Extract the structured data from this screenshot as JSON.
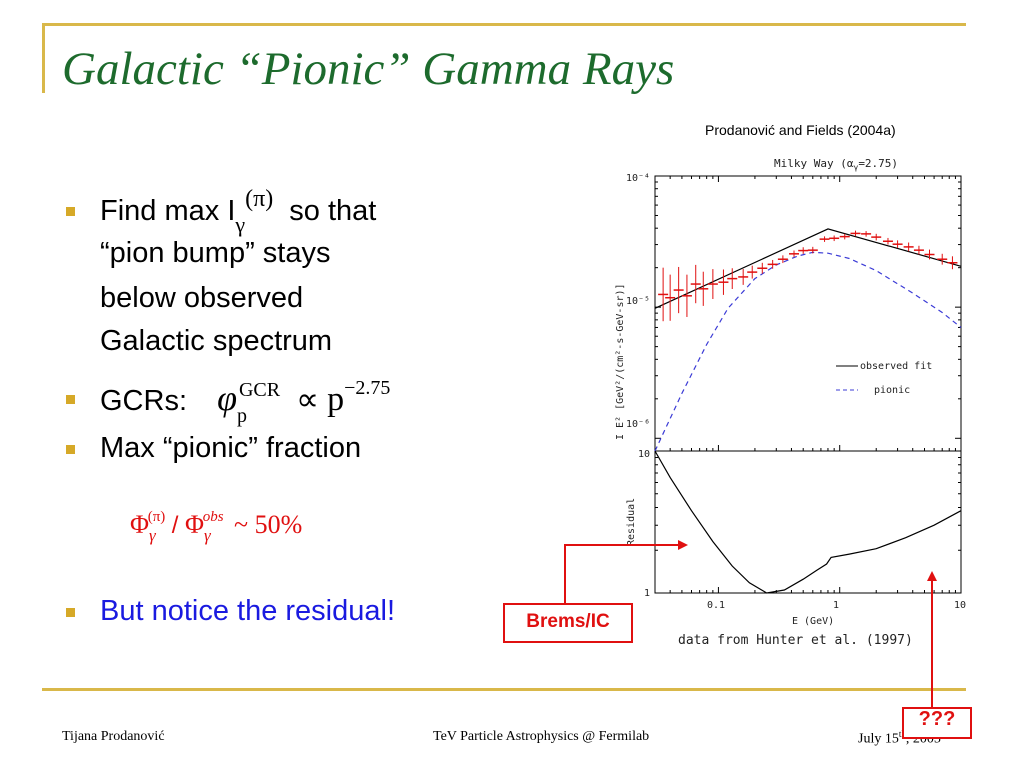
{
  "title": "Galactic “Pionic” Gamma Rays",
  "citation": "Prodanović and Fields (2004a)",
  "bullets": {
    "b1": {
      "prefix": "Find max I",
      "sub": "γ",
      "sup": "(π)",
      "suffix": "so that",
      "line2": "“pion bump” stays",
      "line3": "below observed",
      "line4": "Galactic spectrum"
    },
    "b2": {
      "label": "GCRs:",
      "phi": "φ",
      "sub": "p",
      "sup": "GCR",
      "prop": "∝",
      "p": "p",
      "exp": "−2.75"
    },
    "b3": {
      "text": "Max “pionic” fraction"
    },
    "b4": {
      "text": "But notice the residual!"
    }
  },
  "ratio": {
    "Phi": "Φ",
    "sub": "γ",
    "sup1": "(π)",
    "slash": "/",
    "sup2": "obs",
    "approx": "~ 50%"
  },
  "chart_data": [
    {
      "type": "line",
      "title": "Milky Way (α",
      "title_sub": "γ",
      "title_tail": "=2.75)",
      "ylabel": "I E² [GeV²/(cm²-s-GeV-sr)]",
      "yticks": [
        "10⁻⁴",
        "10⁻⁵",
        "10⁻⁶"
      ],
      "xscale": "log",
      "yscale": "log",
      "xlim": [
        0.03,
        10
      ],
      "ylim": [
        8e-07,
        0.0001
      ],
      "legend": {
        "position": "lower-right",
        "entries": [
          "observed fit",
          "pionic"
        ]
      },
      "series": [
        {
          "name": "observed fit",
          "style": "solid",
          "color": "#000000",
          "x": [
            0.03,
            0.8,
            10
          ],
          "y": [
            9.8e-06,
            3.95e-05,
            2.05e-05
          ]
        },
        {
          "name": "pionic",
          "style": "dashed",
          "color": "#3b3bd6",
          "x": [
            0.03,
            0.05,
            0.08,
            0.12,
            0.2,
            0.3,
            0.45,
            0.6,
            0.8,
            1.2,
            2,
            4,
            7,
            10
          ],
          "y": [
            8e-07,
            2.2e-06,
            5.2e-06,
            9.8e-06,
            1.65e-05,
            2.1e-05,
            2.45e-05,
            2.62e-05,
            2.58e-05,
            2.35e-05,
            1.9e-05,
            1.28e-05,
            9.1e-06,
            7e-06
          ]
        },
        {
          "name": "data",
          "style": "points",
          "color": "#e01010",
          "x": [
            0.035,
            0.04,
            0.047,
            0.055,
            0.065,
            0.075,
            0.09,
            0.11,
            0.13,
            0.16,
            0.19,
            0.23,
            0.28,
            0.34,
            0.42,
            0.5,
            0.6,
            0.75,
            0.9,
            1.1,
            1.35,
            1.65,
            2,
            2.5,
            3,
            3.7,
            4.5,
            5.5,
            7,
            8.5
          ],
          "y": [
            1.25e-05,
            1.18e-05,
            1.35e-05,
            1.22e-05,
            1.5e-05,
            1.38e-05,
            1.5e-05,
            1.55e-05,
            1.65e-05,
            1.7e-05,
            1.85e-05,
            1.98e-05,
            2.12e-05,
            2.32e-05,
            2.55e-05,
            2.7e-05,
            2.72e-05,
            3.3e-05,
            3.35e-05,
            3.45e-05,
            3.65e-05,
            3.62e-05,
            3.42e-05,
            3.18e-05,
            3.02e-05,
            2.88e-05,
            2.72e-05,
            2.52e-05,
            2.32e-05,
            2.18e-05
          ],
          "err_factor": [
            1.6,
            1.5,
            1.5,
            1.45,
            1.4,
            1.35,
            1.3,
            1.25,
            1.2,
            1.15,
            1.12,
            1.1,
            1.08,
            1.07,
            1.06,
            1.06,
            1.06,
            1.05,
            1.05,
            1.05,
            1.05,
            1.05,
            1.06,
            1.06,
            1.07,
            1.08,
            1.08,
            1.09,
            1.1,
            1.12
          ]
        }
      ]
    },
    {
      "type": "line",
      "xlabel": "E (GeV)",
      "ylabel": "Residual",
      "xticks": [
        "0.1",
        "1",
        "10"
      ],
      "yticks": [
        "10",
        "1"
      ],
      "xscale": "log",
      "yscale": "log",
      "xlim": [
        0.03,
        10
      ],
      "ylim": [
        1,
        10
      ],
      "series": [
        {
          "name": "",
          "style": "solid",
          "color": "#000000",
          "x": [
            0.03,
            0.04,
            0.06,
            0.09,
            0.13,
            0.18,
            0.25,
            0.35,
            0.5,
            0.65,
            0.78,
            0.85,
            1.2,
            2,
            3.5,
            6,
            10
          ],
          "y": [
            10,
            6.5,
            3.8,
            2.3,
            1.55,
            1.18,
            1.0,
            1.05,
            1.25,
            1.45,
            1.6,
            1.78,
            1.88,
            2.05,
            2.45,
            3.0,
            3.8
          ]
        }
      ]
    }
  ],
  "data_source": "data from Hunter et al. (1997)",
  "annotations": {
    "brems": "Brems/IC",
    "unknown": "???"
  },
  "footer": {
    "author": "Tijana Prodanović",
    "event": "TeV Particle Astrophysics @ Fermilab",
    "date_pre": "July 15",
    "date_sup": "th",
    "date_post": ", 2005"
  },
  "colors": {
    "frame": "#d9b84a",
    "title": "#1d6b2d",
    "bullet": "#d6a928",
    "highlight": "#e01010",
    "notice": "#1a1ae0"
  }
}
